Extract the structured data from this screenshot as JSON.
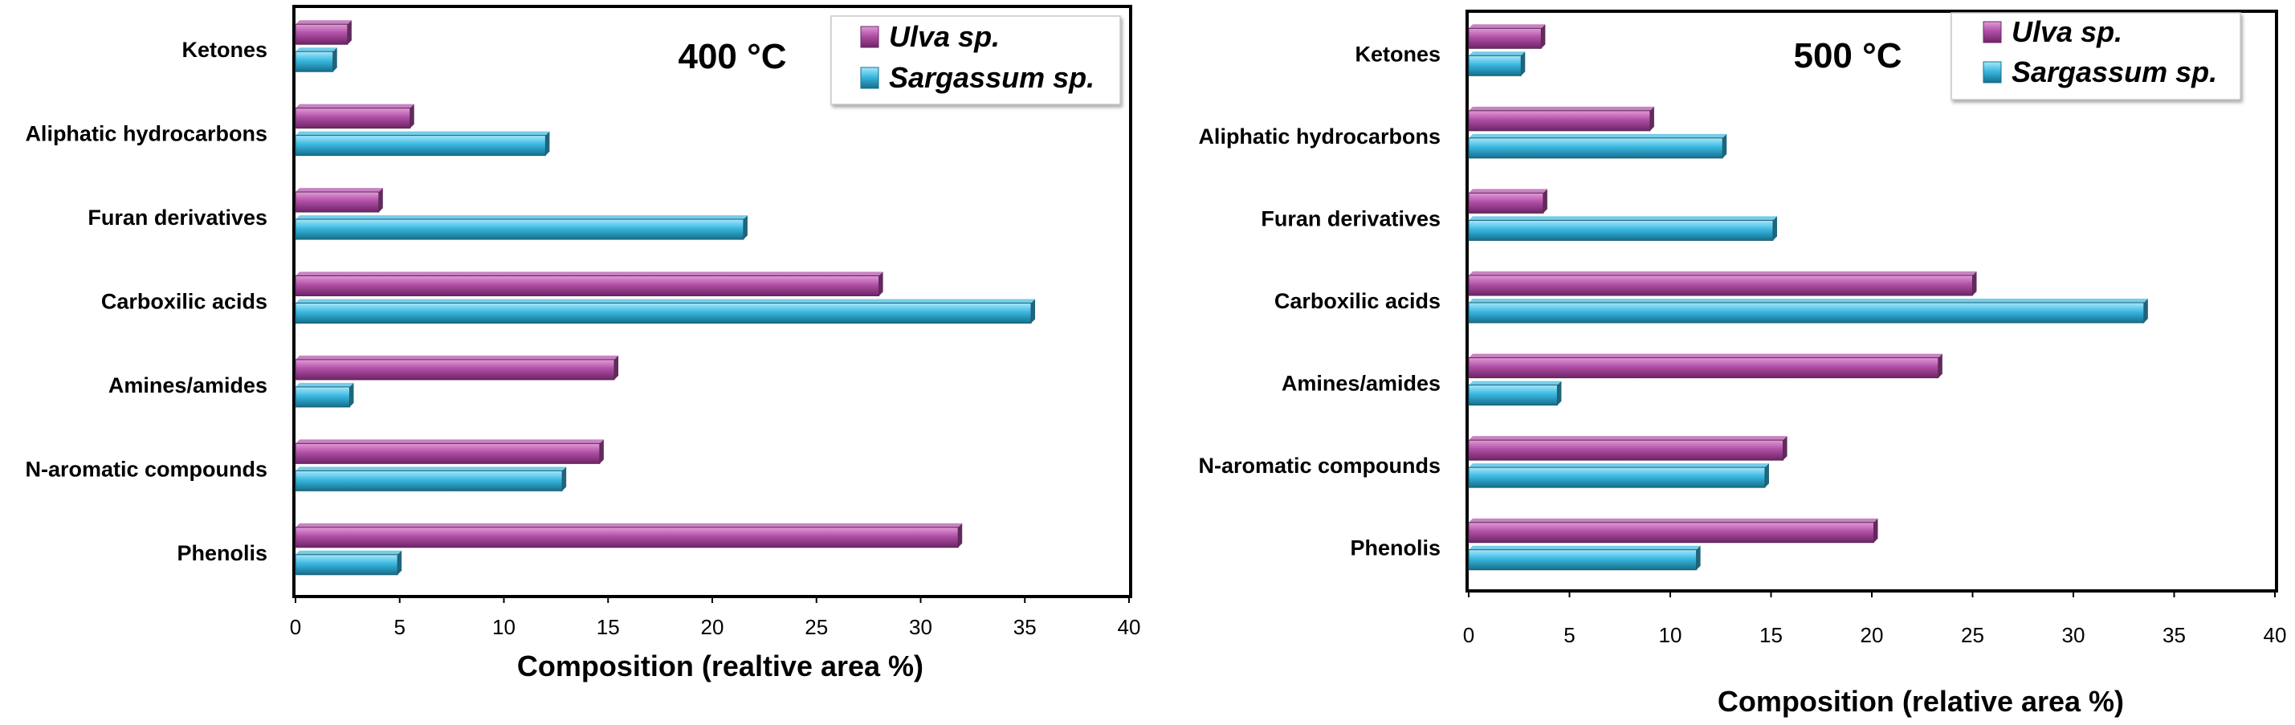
{
  "chart_data": [
    {
      "type": "bar",
      "orientation": "horizontal",
      "title": "400 °C",
      "xlabel": "Composition (realtive area %)",
      "xlim": [
        0,
        40
      ],
      "xticks": [
        0,
        5,
        10,
        15,
        20,
        25,
        30,
        35,
        40
      ],
      "categories": [
        "Ketones",
        "Aliphatic hydrocarbons",
        "Furan derivatives",
        "Carboxilic acids",
        "Amines/amides",
        "N-aromatic compounds",
        "Phenolis"
      ],
      "series": [
        {
          "name": "Ulva sp.",
          "color": "#b04fa6",
          "values": [
            2.5,
            5.5,
            4.0,
            28.0,
            15.3,
            14.6,
            31.8
          ]
        },
        {
          "name": "Sargassum sp.",
          "color": "#3ab8e0",
          "values": [
            1.8,
            12.0,
            21.5,
            35.3,
            2.6,
            12.8,
            4.9
          ]
        }
      ],
      "legend": "top-right",
      "grid": false
    },
    {
      "type": "bar",
      "orientation": "horizontal",
      "title": "500 °C",
      "xlabel": "Composition (relative area %)",
      "xlim": [
        0,
        40
      ],
      "xticks": [
        0,
        5,
        10,
        15,
        20,
        25,
        30,
        35,
        40
      ],
      "categories": [
        "Ketones",
        "Aliphatic hydrocarbons",
        "Furan derivatives",
        "Carboxilic acids",
        "Amines/amides",
        "N-aromatic compounds",
        "Phenolis"
      ],
      "series": [
        {
          "name": "Ulva sp.",
          "color": "#b04fa6",
          "values": [
            3.6,
            9.0,
            3.7,
            25.0,
            23.3,
            15.6,
            20.1
          ]
        },
        {
          "name": "Sargassum sp.",
          "color": "#3ab8e0",
          "values": [
            2.6,
            12.6,
            15.1,
            33.5,
            4.4,
            14.7,
            11.3
          ]
        }
      ],
      "legend": "top-right",
      "grid": false
    }
  ]
}
